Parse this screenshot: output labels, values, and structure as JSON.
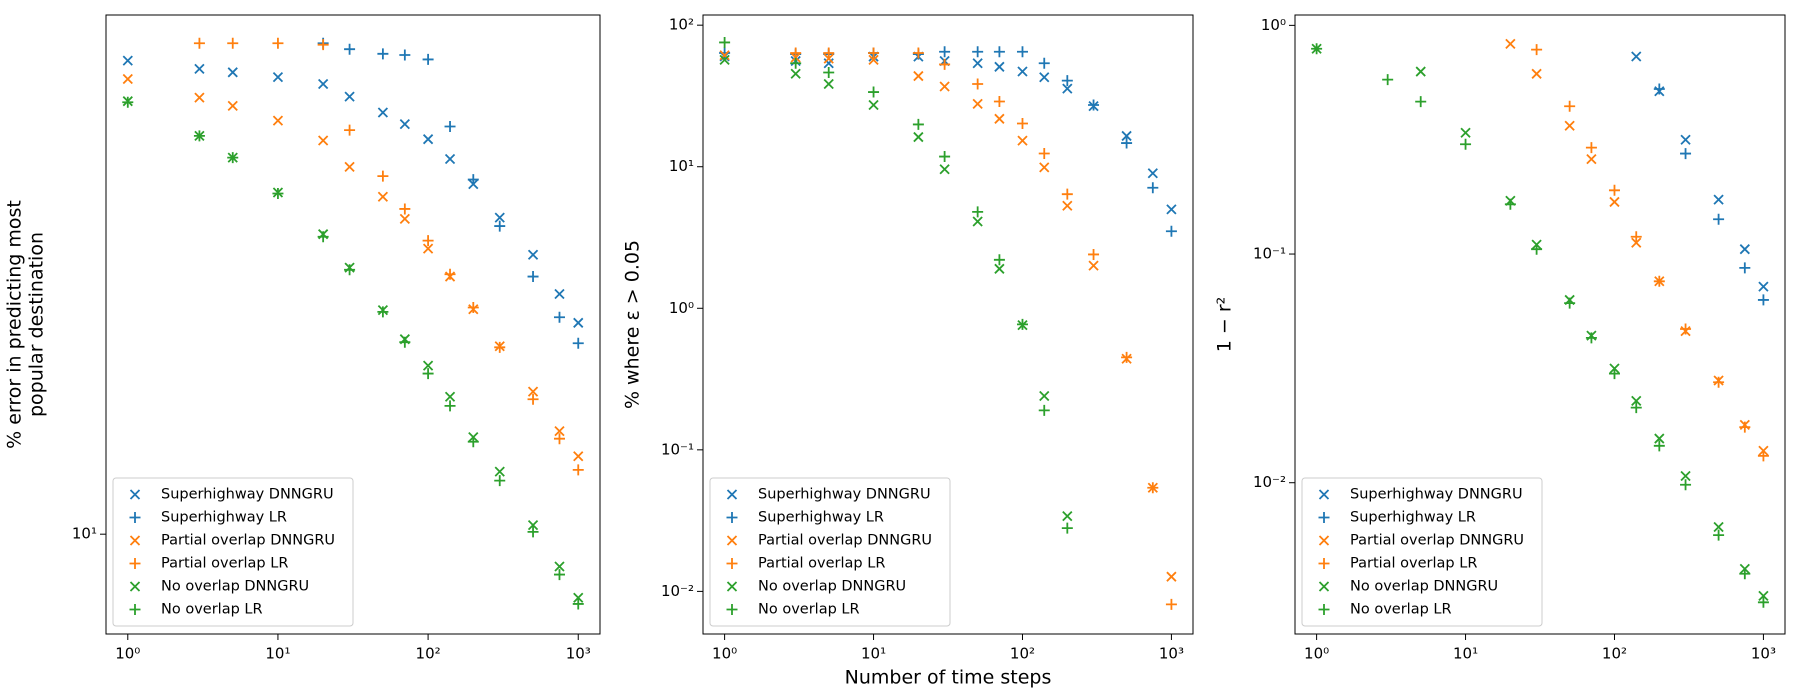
{
  "chart_data": [
    {
      "type": "scatter",
      "xlog": true,
      "ylog": true,
      "legend": "lower left",
      "ylabel": [
        "% error in predicting most",
        "popular destination"
      ],
      "xlim": [
        0.716,
        1396
      ],
      "ylim": [
        6.5,
        94
      ],
      "xticks": [
        {
          "value": 1,
          "label": "10⁰"
        },
        {
          "value": 10,
          "label": "10¹"
        },
        {
          "value": 100,
          "label": "10²"
        },
        {
          "value": 1000,
          "label": "10³"
        }
      ],
      "yticks": [
        {
          "value": 10,
          "label": "10¹"
        }
      ],
      "series": [
        {
          "name": "Superhighway DNNGRU",
          "color": "#1f77b4",
          "marker": "x",
          "x": [
            1,
            3,
            5,
            10,
            20,
            30,
            50,
            70,
            100,
            140,
            200,
            300,
            500,
            750,
            1000
          ],
          "values": [
            77.2,
            74.5,
            73.4,
            71.9,
            69.8,
            66.1,
            61.7,
            58.7,
            55.0,
            50.5,
            45.3,
            39.2,
            33.4,
            28.2,
            24.9
          ]
        },
        {
          "name": "Superhighway LR",
          "color": "#1f77b4",
          "marker": "+",
          "x": [
            20,
            30,
            50,
            70,
            100,
            140,
            200,
            300,
            500,
            750,
            1000
          ],
          "values": [
            83.2,
            81.1,
            79.5,
            79.1,
            77.6,
            58.1,
            46.2,
            37.8,
            30.4,
            25.5,
            22.8
          ]
        },
        {
          "name": "Partial overlap DNNGRU",
          "color": "#ff7f0e",
          "marker": "x",
          "x": [
            1,
            3,
            5,
            10,
            20,
            30,
            50,
            70,
            100,
            140,
            200,
            300,
            500,
            750,
            1000
          ],
          "values": [
            71.3,
            65.8,
            63.5,
            59.6,
            54.7,
            48.8,
            42.9,
            39.0,
            34.3,
            30.4,
            26.4,
            22.5,
            18.5,
            15.6,
            14.0
          ]
        },
        {
          "name": "Partial overlap LR",
          "color": "#ff7f0e",
          "marker": "+",
          "x": [
            3,
            5,
            10,
            20,
            30,
            50,
            70,
            100,
            140,
            200,
            300,
            500,
            750,
            1000
          ],
          "values": [
            83.2,
            83.2,
            83.2,
            82.7,
            57.2,
            46.9,
            40.7,
            35.5,
            30.7,
            26.6,
            22.4,
            17.9,
            15.1,
            13.2
          ]
        },
        {
          "name": "No overlap DNNGRU",
          "color": "#2ca02c",
          "marker": "x",
          "x": [
            1,
            3,
            5,
            10,
            20,
            30,
            50,
            70,
            100,
            140,
            200,
            300,
            500,
            750,
            1000
          ],
          "values": [
            64.8,
            55.8,
            50.8,
            43.7,
            36.5,
            31.6,
            26.3,
            23.2,
            20.7,
            18.1,
            15.2,
            13.1,
            10.4,
            8.7,
            7.6
          ]
        },
        {
          "name": "No overlap LR",
          "color": "#2ca02c",
          "marker": "+",
          "x": [
            1,
            3,
            5,
            10,
            20,
            30,
            50,
            70,
            100,
            140,
            200,
            300,
            500,
            750,
            1000
          ],
          "values": [
            64.5,
            55.8,
            50.8,
            43.5,
            36.1,
            31.3,
            26.1,
            22.9,
            20.0,
            17.4,
            14.9,
            12.6,
            10.1,
            8.4,
            7.4
          ]
        }
      ]
    },
    {
      "type": "scatter",
      "xlog": true,
      "ylog": true,
      "legend": "lower left",
      "ylabel": [
        "% where ε > 0.05"
      ],
      "xlabel": "Number of time steps",
      "xlim": [
        0.716,
        1396
      ],
      "ylim": [
        0.005,
        118
      ],
      "xticks": [
        {
          "value": 1,
          "label": "10⁰"
        },
        {
          "value": 10,
          "label": "10¹"
        },
        {
          "value": 100,
          "label": "10²"
        },
        {
          "value": 1000,
          "label": "10³"
        }
      ],
      "yticks": [
        {
          "value": 0.01,
          "label": "10⁻²"
        },
        {
          "value": 0.1,
          "label": "10⁻¹"
        },
        {
          "value": 1,
          "label": "10⁰"
        },
        {
          "value": 10,
          "label": "10¹"
        },
        {
          "value": 100,
          "label": "10²"
        }
      ],
      "series": [
        {
          "name": "Superhighway DNNGRU",
          "color": "#1f77b4",
          "marker": "x",
          "x": [
            1,
            3,
            5,
            10,
            20,
            30,
            50,
            70,
            100,
            140,
            200,
            300,
            500,
            750,
            1000
          ],
          "values": [
            60.2,
            55.8,
            53.8,
            60,
            60,
            55.8,
            53.8,
            50.8,
            47.1,
            42.9,
            35.6,
            26.8,
            16.5,
            9.0,
            5.0
          ]
        },
        {
          "name": "Superhighway LR",
          "color": "#1f77b4",
          "marker": "+",
          "x": [
            1,
            3,
            5,
            10,
            20,
            30,
            50,
            70,
            100,
            140,
            200,
            300,
            500,
            750,
            1000
          ],
          "values": [
            63.6,
            62.5,
            62.5,
            63.6,
            62.5,
            64.9,
            64.9,
            64.9,
            64.9,
            53.8,
            40.6,
            27.3,
            14.7,
            7.1,
            3.5
          ]
        },
        {
          "name": "Partial overlap DNNGRU",
          "color": "#ff7f0e",
          "marker": "x",
          "x": [
            1,
            3,
            5,
            10,
            20,
            30,
            50,
            70,
            100,
            140,
            200,
            300,
            500,
            750,
            1000
          ],
          "values": [
            61.3,
            59.1,
            58,
            56.9,
            43.7,
            36.9,
            27.8,
            21.8,
            15.3,
            9.9,
            5.3,
            2.0,
            0.44,
            0.054,
            0.0127
          ]
        },
        {
          "name": "Partial overlap LR",
          "color": "#ff7f0e",
          "marker": "+",
          "x": [
            3,
            5,
            10,
            20,
            30,
            50,
            70,
            100,
            140,
            200,
            300,
            500,
            750,
            1000
          ],
          "values": [
            63.6,
            63.6,
            63.6,
            63.6,
            52.8,
            38.4,
            28.9,
            20.2,
            12.4,
            6.4,
            2.4,
            0.45,
            0.054,
            0.0081
          ]
        },
        {
          "name": "No overlap DNNGRU",
          "color": "#2ca02c",
          "marker": "x",
          "x": [
            1,
            3,
            5,
            10,
            20,
            30,
            50,
            70,
            100,
            140,
            200
          ],
          "values": [
            56.9,
            45.4,
            38.4,
            27.3,
            16.2,
            9.6,
            4.1,
            1.9,
            0.76,
            0.24,
            0.034
          ]
        },
        {
          "name": "No overlap LR",
          "color": "#2ca02c",
          "marker": "+",
          "x": [
            1,
            3,
            5,
            10,
            20,
            30,
            50,
            70,
            100,
            140,
            200
          ],
          "values": [
            75.5,
            53.8,
            46.3,
            33.7,
            19.9,
            11.8,
            4.8,
            2.2,
            0.77,
            0.19,
            0.028
          ]
        }
      ]
    },
    {
      "type": "scatter",
      "xlog": true,
      "ylog": true,
      "legend": "lower left",
      "ylabel": [
        "1 − r²"
      ],
      "xlim": [
        0.716,
        1396
      ],
      "ylim": [
        0.00218,
        1.11
      ],
      "xticks": [
        {
          "value": 1,
          "label": "10⁰"
        },
        {
          "value": 10,
          "label": "10¹"
        },
        {
          "value": 100,
          "label": "10²"
        },
        {
          "value": 1000,
          "label": "10³"
        }
      ],
      "yticks": [
        {
          "value": 0.01,
          "label": "10⁻²"
        },
        {
          "value": 0.1,
          "label": "10⁻¹"
        },
        {
          "value": 1,
          "label": "10⁰"
        }
      ],
      "series": [
        {
          "name": "Superhighway DNNGRU",
          "color": "#1f77b4",
          "marker": "x",
          "x": [
            140,
            200,
            300,
            500,
            750,
            1000
          ],
          "values": [
            0.731,
            0.515,
            0.316,
            0.173,
            0.105,
            0.072
          ]
        },
        {
          "name": "Superhighway LR",
          "color": "#1f77b4",
          "marker": "+",
          "x": [
            200,
            300,
            500,
            750,
            1000
          ],
          "values": [
            0.527,
            0.275,
            0.142,
            0.087,
            0.063
          ]
        },
        {
          "name": "Partial overlap DNNGRU",
          "color": "#ff7f0e",
          "marker": "x",
          "x": [
            20,
            30,
            50,
            70,
            100,
            140,
            200,
            300,
            500,
            750,
            1000
          ],
          "values": [
            0.83,
            0.614,
            0.364,
            0.26,
            0.169,
            0.112,
            0.076,
            0.046,
            0.028,
            0.0179,
            0.0138
          ]
        },
        {
          "name": "Partial overlap LR",
          "color": "#ff7f0e",
          "marker": "+",
          "x": [
            30,
            50,
            70,
            100,
            140,
            200,
            300,
            500,
            750,
            1000
          ],
          "values": [
            0.783,
            0.443,
            0.292,
            0.19,
            0.119,
            0.076,
            0.047,
            0.0275,
            0.0175,
            0.0131
          ]
        },
        {
          "name": "No overlap DNNGRU",
          "color": "#2ca02c",
          "marker": "x",
          "x": [
            1,
            5,
            10,
            20,
            30,
            50,
            70,
            100,
            140,
            200,
            300,
            500,
            750,
            1000
          ],
          "values": [
            0.79,
            0.628,
            0.339,
            0.171,
            0.11,
            0.063,
            0.044,
            0.0316,
            0.0228,
            0.0156,
            0.0107,
            0.0064,
            0.0042,
            0.0032
          ]
        },
        {
          "name": "No overlap LR",
          "color": "#2ca02c",
          "marker": "+",
          "x": [
            1,
            3,
            5,
            10,
            20,
            30,
            50,
            70,
            100,
            140,
            200,
            300,
            500,
            750,
            1000
          ],
          "values": [
            0.79,
            0.579,
            0.464,
            0.302,
            0.165,
            0.105,
            0.061,
            0.043,
            0.03,
            0.0213,
            0.0145,
            0.0098,
            0.0059,
            0.004,
            0.003
          ]
        }
      ]
    }
  ]
}
